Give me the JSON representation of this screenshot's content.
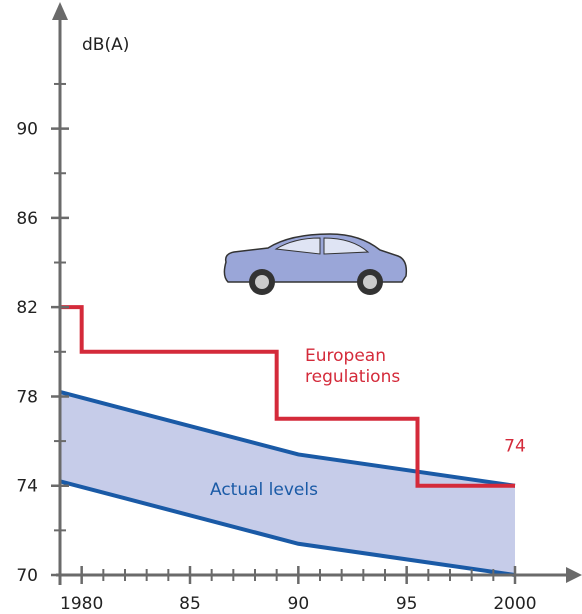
{
  "chart_data": {
    "type": "band-step",
    "y_label": "dB(A)",
    "xlim": [
      1979,
      2003
    ],
    "xticks": [
      1980,
      {
        "value": 1985,
        "label": "85"
      },
      {
        "value": 1990,
        "label": "90"
      },
      {
        "value": 1995,
        "label": "95"
      },
      2000
    ],
    "xminor_ticks": [
      1981,
      1982,
      1983,
      1984,
      1986,
      1987,
      1988,
      1989,
      1991,
      1992,
      1993,
      1994,
      1996,
      1997,
      1998,
      1999
    ],
    "ylim": [
      70,
      95
    ],
    "yticks": [
      70,
      74,
      78,
      82,
      86,
      90
    ],
    "yminor_ticks": [
      72,
      76,
      80,
      84,
      88,
      92
    ],
    "series": [
      {
        "name": "Actual levels",
        "kind": "band",
        "color": "#1a5aa6",
        "fill": "#c6cce9",
        "x": [
          1979,
          1990,
          2000
        ],
        "upper": [
          78.2,
          75.4,
          74
        ],
        "lower": [
          74.2,
          71.4,
          70
        ]
      },
      {
        "name": "European regulations",
        "kind": "step",
        "color": "#d42a3a",
        "x": [
          1979,
          1980,
          1989,
          1995.5,
          2000
        ],
        "values": [
          82,
          80,
          77,
          74,
          74
        ]
      }
    ]
  }
}
